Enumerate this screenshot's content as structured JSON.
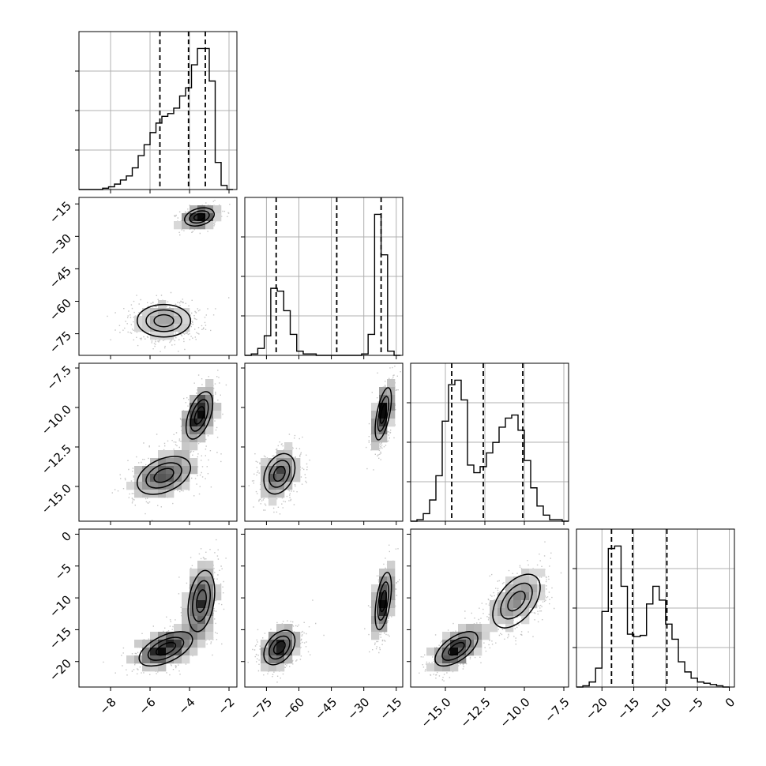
{
  "chart_data": {
    "type": "corner",
    "grid": true,
    "parameters": [
      {
        "id": "p1",
        "range": [
          -9.6,
          -1.6
        ],
        "ticks": [
          -8,
          -6,
          -4,
          -2
        ],
        "tick_labels": [
          "−8",
          "−6",
          "−4",
          "−2"
        ],
        "quantiles": [
          -5.5,
          -4.05,
          -3.2
        ],
        "histogram": {
          "edges": [
            -9.6,
            -9.3,
            -9.0,
            -8.7,
            -8.4,
            -8.1,
            -7.8,
            -7.5,
            -7.2,
            -6.9,
            -6.6,
            -6.3,
            -6.0,
            -5.7,
            -5.4,
            -5.1,
            -4.8,
            -4.5,
            -4.2,
            -3.9,
            -3.6,
            -3.3,
            -3.0,
            -2.7,
            -2.4,
            -2.1,
            -1.8
          ],
          "counts": [
            0,
            0,
            0,
            0,
            1,
            2,
            4,
            7,
            10,
            16,
            25,
            33,
            42,
            49,
            54,
            56,
            60,
            69,
            75,
            92,
            104,
            104,
            80,
            20,
            3,
            0
          ]
        }
      },
      {
        "id": "p2",
        "range": [
          -85,
          -12
        ],
        "ticks": [
          -75,
          -60,
          -45,
          -30,
          -15
        ],
        "tick_labels": [
          "−75",
          "−60",
          "−45",
          "−30",
          "−15"
        ],
        "quantiles": [
          -70.5,
          -42.5,
          -22.0
        ],
        "histogram": {
          "edges": [
            -85,
            -82,
            -79,
            -76,
            -73,
            -70,
            -67,
            -64,
            -61,
            -58,
            -55,
            -52,
            -49,
            -46,
            -43,
            -40,
            -37,
            -34,
            -31,
            -28,
            -25,
            -22,
            -19,
            -16,
            -13
          ],
          "counts": [
            0,
            1,
            5,
            14,
            48,
            46,
            32,
            15,
            3,
            1,
            1,
            0,
            0,
            0,
            0,
            0,
            0,
            0,
            1,
            15,
            101,
            72,
            3,
            0
          ]
        }
      },
      {
        "id": "p3",
        "range": [
          -17.2,
          -7.2
        ],
        "ticks": [
          -15.0,
          -12.5,
          -10.0,
          -7.5
        ],
        "tick_labels": [
          "−15.0",
          "−12.5",
          "−10.0",
          "−7.5"
        ],
        "quantiles": [
          -14.6,
          -12.6,
          -10.1
        ],
        "histogram": {
          "edges": [
            -17.2,
            -16.8,
            -16.4,
            -16.0,
            -15.6,
            -15.2,
            -14.8,
            -14.4,
            -14.0,
            -13.6,
            -13.2,
            -12.8,
            -12.4,
            -12.0,
            -11.6,
            -11.2,
            -10.8,
            -10.4,
            -10.0,
            -9.6,
            -9.2,
            -8.8,
            -8.4,
            -8.0,
            -7.6,
            -7.2
          ],
          "counts": [
            0,
            1,
            5,
            14,
            30,
            66,
            90,
            93,
            80,
            37,
            32,
            36,
            45,
            52,
            62,
            68,
            70,
            60,
            40,
            22,
            10,
            4,
            1,
            1,
            0
          ]
        }
      },
      {
        "id": "p4",
        "range": [
          -24,
          0.8
        ],
        "ticks": [
          -20,
          -15,
          -10,
          -5,
          0
        ],
        "tick_labels": [
          "−20",
          "−15",
          "−10",
          "−5",
          "0"
        ],
        "quantiles": [
          -18.5,
          -15.2,
          -9.8
        ],
        "histogram": {
          "edges": [
            -24,
            -23,
            -22,
            -21,
            -20,
            -19,
            -18,
            -17,
            -16,
            -15,
            -14,
            -13,
            -12,
            -11,
            -10,
            -9,
            -8,
            -7,
            -6,
            -5,
            -4,
            -3,
            -2,
            -1,
            0
          ],
          "counts": [
            0,
            1,
            4,
            15,
            60,
            110,
            112,
            80,
            42,
            40,
            41,
            66,
            80,
            69,
            50,
            38,
            20,
            12,
            7,
            4,
            3,
            2,
            1,
            0
          ]
        }
      }
    ],
    "joint": [
      {
        "x": "p1",
        "y": "p2",
        "clusters": [
          {
            "mx": -3.5,
            "my": -21,
            "sx": 0.5,
            "sy": 2.8,
            "r": 0.3,
            "n": 1600
          },
          {
            "mx": -5.3,
            "my": -69,
            "sx": 0.9,
            "sy": 5.0,
            "r": 0.0,
            "n": 1800
          }
        ]
      },
      {
        "x": "p1",
        "y": "p3",
        "clusters": [
          {
            "mx": -3.5,
            "my": -10.5,
            "sx": 0.45,
            "sy": 1.0,
            "r": 0.5,
            "n": 1600
          },
          {
            "mx": -5.3,
            "my": -14.3,
            "sx": 0.9,
            "sy": 0.8,
            "r": 0.4,
            "n": 1800
          }
        ]
      },
      {
        "x": "p2",
        "y": "p3",
        "clusters": [
          {
            "mx": -21,
            "my": -10.4,
            "sx": 2.5,
            "sy": 1.1,
            "r": 0.6,
            "n": 1600
          },
          {
            "mx": -69,
            "my": -14.2,
            "sx": 4.8,
            "sy": 0.85,
            "r": 0.3,
            "n": 1800
          }
        ]
      },
      {
        "x": "p1",
        "y": "p4",
        "clusters": [
          {
            "mx": -3.4,
            "my": -10.5,
            "sx": 0.45,
            "sy": 3.2,
            "r": 0.3,
            "n": 1600
          },
          {
            "mx": -5.2,
            "my": -18.0,
            "sx": 0.9,
            "sy": 1.8,
            "r": 0.55,
            "n": 1800
          }
        ]
      },
      {
        "x": "p2",
        "y": "p4",
        "clusters": [
          {
            "mx": -21,
            "my": -10.5,
            "sx": 2.5,
            "sy": 3.0,
            "r": 0.5,
            "n": 1600
          },
          {
            "mx": -69,
            "my": -17.8,
            "sx": 4.8,
            "sy": 1.8,
            "r": 0.4,
            "n": 1800
          }
        ]
      },
      {
        "x": "p3",
        "y": "p4",
        "clusters": [
          {
            "mx": -10.5,
            "my": -10.5,
            "sx": 1.0,
            "sy": 2.8,
            "r": 0.5,
            "n": 1600
          },
          {
            "mx": -14.3,
            "my": -18.0,
            "sx": 0.9,
            "sy": 1.8,
            "r": 0.6,
            "n": 1800
          }
        ]
      }
    ]
  }
}
